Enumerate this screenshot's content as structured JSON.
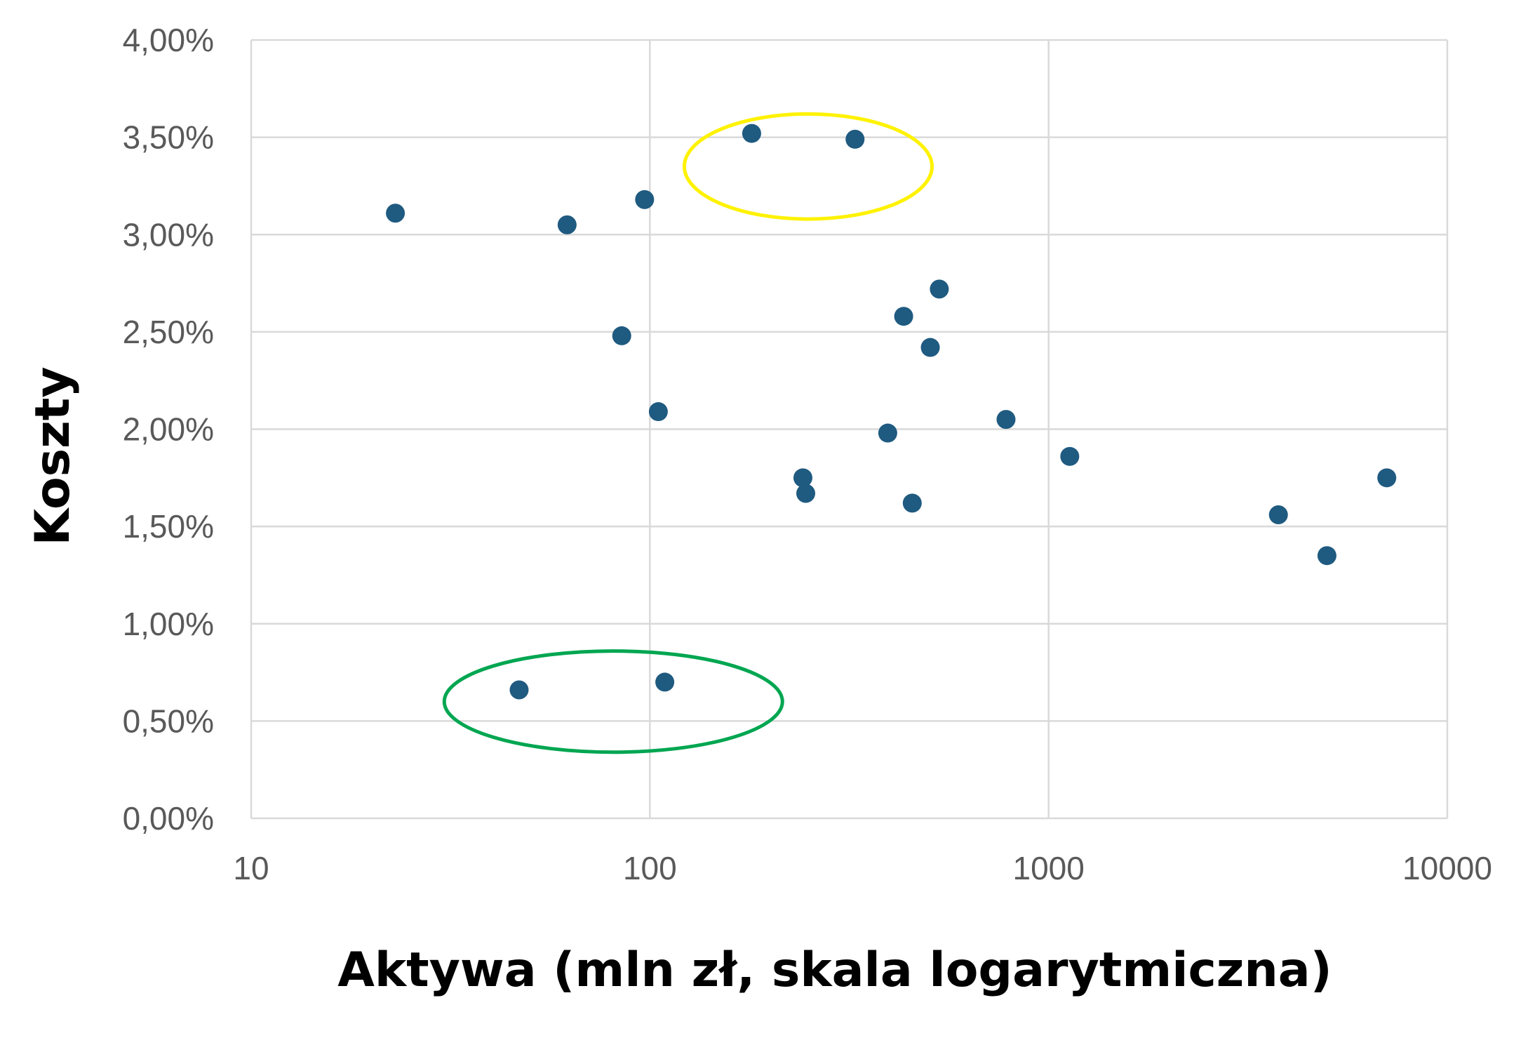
{
  "chart_data": {
    "type": "scatter",
    "title": "",
    "xlabel": "Aktywa (mln zł, skala logarytmiczna)",
    "ylabel": "Koszty",
    "x_scale": "log",
    "xlim": [
      10,
      10000
    ],
    "ylim": [
      0,
      0.04
    ],
    "x_ticks": [
      10,
      100,
      1000,
      10000
    ],
    "x_tick_labels": [
      "10",
      "100",
      "1000",
      "10000"
    ],
    "y_ticks": [
      0,
      0.005,
      0.01,
      0.015,
      0.02,
      0.025,
      0.03,
      0.035,
      0.04
    ],
    "y_tick_labels": [
      "0,00%",
      "0,50%",
      "1,00%",
      "1,50%",
      "2,00%",
      "2,50%",
      "3,00%",
      "3,50%",
      "4,00%"
    ],
    "grid": true,
    "legend": "none",
    "marker_color": "#1F5A80",
    "series": [
      {
        "points": [
          {
            "x": 23,
            "y": 0.0311
          },
          {
            "x": 47,
            "y": 0.0066
          },
          {
            "x": 62,
            "y": 0.0305
          },
          {
            "x": 85,
            "y": 0.0248
          },
          {
            "x": 97,
            "y": 0.0318
          },
          {
            "x": 105,
            "y": 0.0209
          },
          {
            "x": 109,
            "y": 0.007
          },
          {
            "x": 180,
            "y": 0.0352
          },
          {
            "x": 242,
            "y": 0.0175
          },
          {
            "x": 246,
            "y": 0.0167
          },
          {
            "x": 327,
            "y": 0.0349
          },
          {
            "x": 395,
            "y": 0.0198
          },
          {
            "x": 433,
            "y": 0.0258
          },
          {
            "x": 455,
            "y": 0.0162
          },
          {
            "x": 505,
            "y": 0.0242
          },
          {
            "x": 532,
            "y": 0.0272
          },
          {
            "x": 782,
            "y": 0.0205
          },
          {
            "x": 1130,
            "y": 0.0186
          },
          {
            "x": 3770,
            "y": 0.0156
          },
          {
            "x": 4990,
            "y": 0.0135
          },
          {
            "x": 7050,
            "y": 0.0175
          }
        ]
      }
    ],
    "annotations": [
      {
        "shape": "ellipse",
        "color": "#FFF200",
        "x_range": [
          122,
          510
        ],
        "y_range": [
          0.0308,
          0.0362
        ]
      },
      {
        "shape": "ellipse",
        "color": "#00A651",
        "x_range": [
          30.5,
          215
        ],
        "y_range": [
          0.0034,
          0.0086
        ]
      }
    ]
  }
}
